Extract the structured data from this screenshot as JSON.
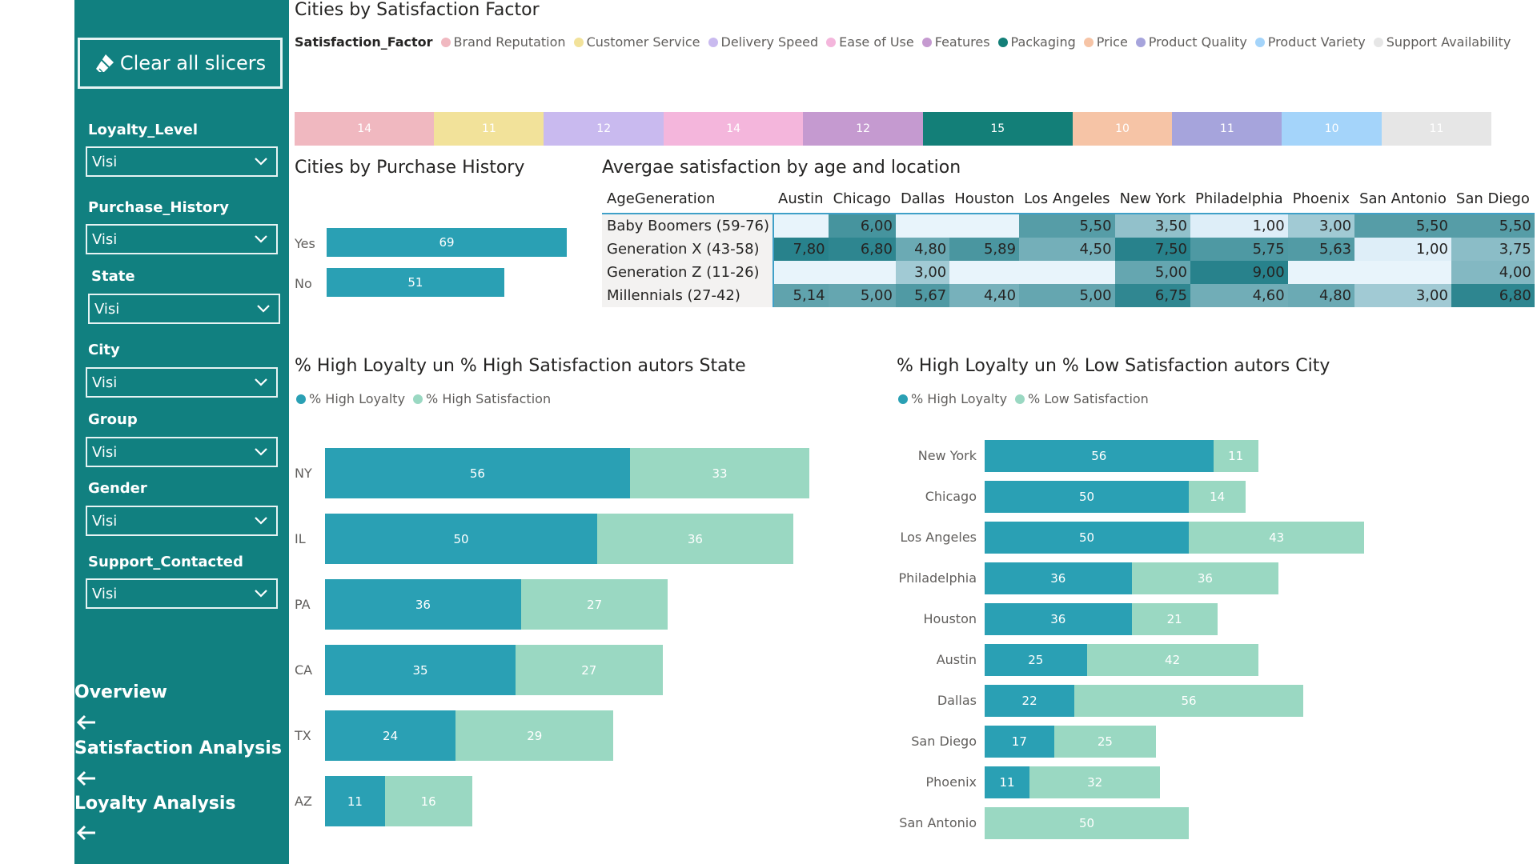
{
  "sidebar": {
    "clear_button": "Clear all slicers",
    "slicers": [
      {
        "label": "Loyalty_Level",
        "value": "Visi"
      },
      {
        "label": "Purchase_History",
        "value": "Visi"
      },
      {
        "label": "State",
        "value": "Visi"
      },
      {
        "label": "City",
        "value": "Visi"
      },
      {
        "label": "Group",
        "value": "Visi"
      },
      {
        "label": "Gender",
        "value": "Visi"
      },
      {
        "label": "Support_Contacted",
        "value": "Visi"
      }
    ],
    "nav": [
      {
        "label": "Overview"
      },
      {
        "label": "Satisfaction Analysis"
      },
      {
        "label": "Loyalty Analysis"
      }
    ]
  },
  "colors": {
    "sidebar": "#118080",
    "high_loyalty": "#2aa0b4",
    "high_satisfaction": "#9ad8c2"
  },
  "chart_data": [
    {
      "type": "bar",
      "title": "Cities by Satisfaction Factor",
      "legend_title": "Satisfaction_Factor",
      "stacked": true,
      "series": [
        {
          "name": "Brand Reputation",
          "values": [
            14
          ],
          "color": "#f0b8c0"
        },
        {
          "name": "Customer Service",
          "values": [
            11
          ],
          "color": "#f2e29a"
        },
        {
          "name": "Delivery Speed",
          "values": [
            12
          ],
          "color": "#c9baef"
        },
        {
          "name": "Ease of Use",
          "values": [
            14
          ],
          "color": "#f4b6dc"
        },
        {
          "name": "Features",
          "values": [
            12
          ],
          "color": "#c59ad0"
        },
        {
          "name": "Packaging",
          "values": [
            15
          ],
          "color": "#137f78"
        },
        {
          "name": "Price",
          "values": [
            10
          ],
          "color": "#f6c4a6"
        },
        {
          "name": "Product Quality",
          "values": [
            11
          ],
          "color": "#a6a4dc"
        },
        {
          "name": "Product Variety",
          "values": [
            10
          ],
          "color": "#a4d4fa"
        },
        {
          "name": "Support Availability",
          "values": [
            11
          ],
          "color": "#e6e6e6"
        }
      ]
    },
    {
      "type": "bar",
      "title": "Cities by Purchase History",
      "categories": [
        "Yes",
        "No"
      ],
      "values": [
        69,
        51
      ],
      "color": "#2aa0b4"
    },
    {
      "type": "table",
      "title": "Avergae satisfaction by age and location",
      "row_header": "AgeGeneration",
      "columns": [
        "Austin",
        "Chicago",
        "Dallas",
        "Houston",
        "Los Angeles",
        "New York",
        "Philadelphia",
        "Phoenix",
        "San Antonio",
        "San Diego"
      ],
      "rows": [
        {
          "name": "Baby Boomers (59-76)",
          "values": [
            "",
            "6,00",
            "",
            "",
            "5,50",
            "3,50",
            "1,00",
            "3,00",
            "5,50",
            "5,50"
          ]
        },
        {
          "name": "Generation X (43-58)",
          "values": [
            "7,80",
            "6,80",
            "4,80",
            "5,89",
            "4,50",
            "7,50",
            "5,75",
            "5,63",
            "1,00",
            "3,75"
          ]
        },
        {
          "name": "Generation Z (11-26)",
          "values": [
            "",
            "",
            "3,00",
            "",
            "",
            "5,00",
            "9,00",
            "",
            "",
            "4,00"
          ]
        },
        {
          "name": "Millennials (27-42)",
          "values": [
            "5,14",
            "5,00",
            "5,67",
            "4,40",
            "5,00",
            "6,75",
            "4,60",
            "4,80",
            "3,00",
            "6,80"
          ]
        }
      ]
    },
    {
      "type": "bar",
      "title": "% High Loyalty un % High Satisfaction autors State",
      "stacked": true,
      "categories": [
        "NY",
        "IL",
        "PA",
        "CA",
        "TX",
        "AZ"
      ],
      "series": [
        {
          "name": "% High Loyalty",
          "values": [
            56,
            50,
            36,
            35,
            24,
            11
          ]
        },
        {
          "name": "% High Satisfaction",
          "values": [
            33,
            36,
            27,
            27,
            29,
            16
          ]
        }
      ]
    },
    {
      "type": "bar",
      "title": "% High Loyalty un % Low Satisfaction autors City",
      "stacked": true,
      "categories": [
        "New York",
        "Chicago",
        "Los Angeles",
        "Philadelphia",
        "Houston",
        "Austin",
        "Dallas",
        "San Diego",
        "Phoenix",
        "San Antonio"
      ],
      "series": [
        {
          "name": "% High Loyalty",
          "values": [
            56,
            50,
            50,
            36,
            36,
            25,
            22,
            17,
            11,
            0
          ]
        },
        {
          "name": "% Low Satisfaction",
          "values": [
            11,
            14,
            43,
            36,
            21,
            42,
            56,
            25,
            32,
            50
          ]
        }
      ]
    }
  ]
}
